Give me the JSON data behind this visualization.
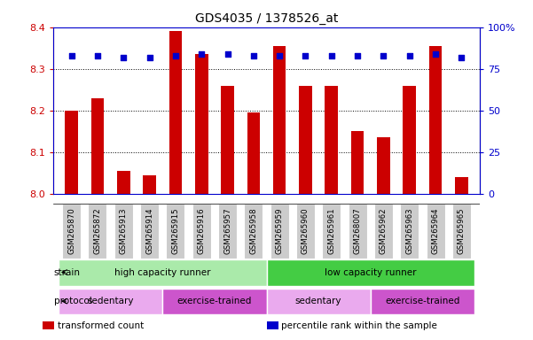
{
  "title": "GDS4035 / 1378526_at",
  "samples": [
    "GSM265870",
    "GSM265872",
    "GSM265913",
    "GSM265914",
    "GSM265915",
    "GSM265916",
    "GSM265957",
    "GSM265958",
    "GSM265959",
    "GSM265960",
    "GSM265961",
    "GSM268007",
    "GSM265962",
    "GSM265963",
    "GSM265964",
    "GSM265965"
  ],
  "bar_values": [
    8.2,
    8.23,
    8.055,
    8.045,
    8.39,
    8.335,
    8.26,
    8.195,
    8.355,
    8.26,
    8.26,
    8.15,
    8.135,
    8.26,
    8.355,
    8.04
  ],
  "dot_values": [
    83,
    83,
    82,
    82,
    83,
    84,
    84,
    83,
    83,
    83,
    83,
    83,
    83,
    83,
    84,
    82
  ],
  "y_min": 8.0,
  "y_max": 8.4,
  "y_ticks": [
    8.0,
    8.1,
    8.2,
    8.3,
    8.4
  ],
  "y2_ticks": [
    0,
    25,
    50,
    75,
    100
  ],
  "bar_color": "#cc0000",
  "dot_color": "#0000cc",
  "background_color": "#ffffff",
  "strain_groups": [
    {
      "label": "high capacity runner",
      "start": 0,
      "end": 8,
      "color": "#aaeaaa"
    },
    {
      "label": "low capacity runner",
      "start": 8,
      "end": 16,
      "color": "#44cc44"
    }
  ],
  "protocol_groups": [
    {
      "label": "sedentary",
      "start": 0,
      "end": 4,
      "color": "#eaaaee"
    },
    {
      "label": "exercise-trained",
      "start": 4,
      "end": 8,
      "color": "#cc55cc"
    },
    {
      "label": "sedentary",
      "start": 8,
      "end": 12,
      "color": "#eaaaee"
    },
    {
      "label": "exercise-trained",
      "start": 12,
      "end": 16,
      "color": "#cc55cc"
    }
  ],
  "tick_bg_color": "#cccccc",
  "legend_items": [
    {
      "color": "#cc0000",
      "label": "transformed count"
    },
    {
      "color": "#0000cc",
      "label": "percentile rank within the sample"
    }
  ]
}
